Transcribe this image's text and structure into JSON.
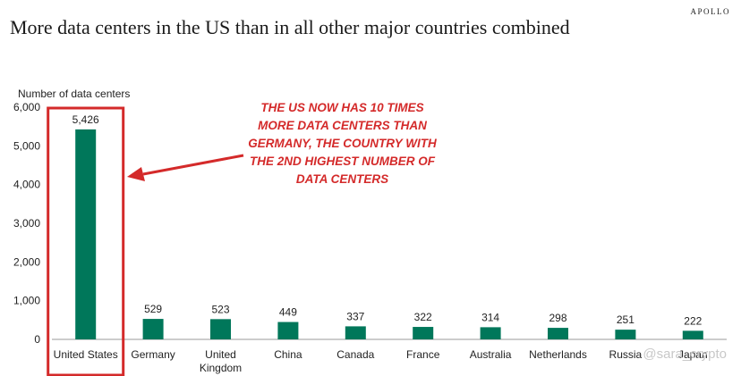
{
  "brand": "APOLLO",
  "watermark": "@sara_crypto",
  "chart_data": {
    "type": "bar",
    "title": "More data centers in the US than in all other major countries combined",
    "ylabel": "Number of data centers",
    "xlabel": "",
    "ylim": [
      0,
      6000
    ],
    "yticks": [
      "0",
      "1,000",
      "2,000",
      "3,000",
      "4,000",
      "5,000",
      "6,000"
    ],
    "categories": [
      "United States",
      "Germany",
      "United Kingdom",
      "China",
      "Canada",
      "France",
      "Australia",
      "Netherlands",
      "Russia",
      "Japan"
    ],
    "category_lines": [
      [
        "United States"
      ],
      [
        "Germany"
      ],
      [
        "United",
        "Kingdom"
      ],
      [
        "China"
      ],
      [
        "Canada"
      ],
      [
        "France"
      ],
      [
        "Australia"
      ],
      [
        "Netherlands"
      ],
      [
        "Russia"
      ],
      [
        "Japan"
      ]
    ],
    "values": [
      5426,
      529,
      523,
      449,
      337,
      322,
      314,
      298,
      251,
      222
    ],
    "value_labels": [
      "5,426",
      "529",
      "523",
      "449",
      "337",
      "322",
      "314",
      "298",
      "251",
      "222"
    ],
    "bar_color": "#00775a",
    "highlight_color": "#d42a2a",
    "annotation": "THE US NOW HAS 10 TIMES MORE DATA CENTERS THAN GERMANY, THE COUNTRY WITH THE 2ND HIGHEST NUMBER OF DATA CENTERS"
  }
}
